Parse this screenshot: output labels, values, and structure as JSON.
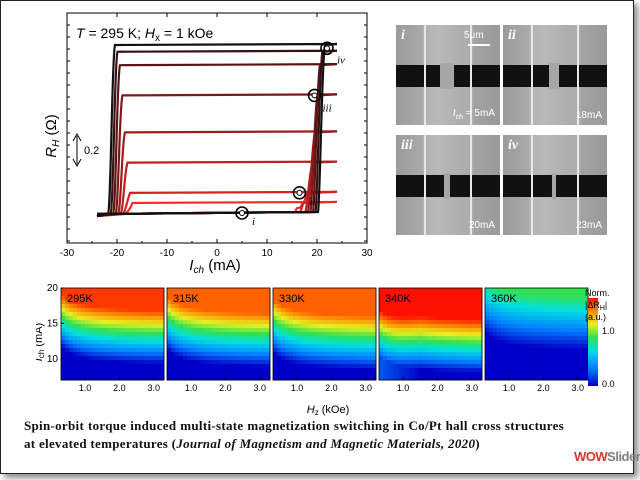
{
  "hysteresis": {
    "title_T": "T",
    "title_rest": " = 295 K; ",
    "title_H": "H",
    "title_sub": "x",
    "title_end": " = 1 kOe",
    "ylabel_main": "R",
    "ylabel_sub": "H",
    "ylabel_unit": " (Ω)",
    "xlabel_main": "I",
    "xlabel_sub": "ch",
    "xlabel_unit": " (mA)",
    "scale_label": "0.2",
    "markers": [
      "i",
      "ii",
      "iii",
      "iv"
    ]
  },
  "chart_data": [
    {
      "type": "line",
      "title": "T = 295 K; Hx = 1 kOe",
      "xlabel": "Ich (mA)",
      "ylabel": "RH (Ω)",
      "xlim": [
        -30,
        30
      ],
      "xticks": [
        -30,
        -20,
        -10,
        0,
        10,
        20,
        30
      ],
      "series_note": "nested minor hysteresis loops, dark (full loop) to light red",
      "loops": [
        {
          "name": "full",
          "upper": 1.0,
          "switch_down": -22,
          "switch_up": 21,
          "color": "#111111"
        },
        {
          "name": "loop2",
          "upper": 0.96,
          "switch_down": -21.5,
          "switch_up": 20.5,
          "color": "#3a0f0f"
        },
        {
          "name": "loop3",
          "upper": 0.88,
          "switch_down": -21,
          "switch_up": 20,
          "color": "#5a1414"
        },
        {
          "name": "loop4",
          "upper": 0.7,
          "switch_down": -20.5,
          "switch_up": 19.5,
          "color": "#7e1818"
        },
        {
          "name": "loop5",
          "upper": 0.48,
          "switch_down": -20,
          "switch_up": 19,
          "color": "#a01c1c"
        },
        {
          "name": "loop6",
          "upper": 0.3,
          "switch_down": -19.5,
          "switch_up": 18.5,
          "color": "#bd2020"
        },
        {
          "name": "loop7",
          "upper": 0.12,
          "switch_down": -19,
          "switch_up": 17.5,
          "color": "#d62222"
        },
        {
          "name": "loop8",
          "upper": 0.06,
          "switch_down": -18.5,
          "switch_up": 16.5,
          "color": "#ee2a2a"
        }
      ],
      "marked_points": [
        {
          "label": "i",
          "x": 5,
          "y": 0.0
        },
        {
          "label": "ii",
          "x": 16.5,
          "y": 0.12
        },
        {
          "label": "iii",
          "x": 19.5,
          "y": 0.7
        },
        {
          "label": "iv",
          "x": 22,
          "y": 0.98
        }
      ]
    },
    {
      "type": "heatmap",
      "xlabel": "Hz (kOe)",
      "ylabel": "Ich (mA)",
      "xticks": [
        1.0,
        2.0,
        3.0
      ],
      "yticks": [
        10,
        15,
        20
      ],
      "ylim": [
        7,
        20
      ],
      "colorbar_label": "Norm. |ΔRH| (a.u.)",
      "colorbar_ticks": [
        0.0,
        1.0
      ],
      "panels": [
        {
          "label": "295K",
          "threshold": 13.0,
          "saturation": 0.95
        },
        {
          "label": "315K",
          "threshold": 12.6,
          "saturation": 0.9
        },
        {
          "label": "330K",
          "threshold": 12.2,
          "saturation": 0.9
        },
        {
          "label": "340K",
          "threshold": 11.8,
          "saturation": 1.0
        },
        {
          "label": "360K",
          "threshold": 15.0,
          "saturation": 0.55
        }
      ]
    }
  ],
  "colormap": {
    "heatmap_label": "Norm.",
    "heatmap_label2": "|ΔR",
    "heatmap_label2_sub": "H",
    "heatmap_label2_end": "|",
    "heatmap_label3": "(a.u.)",
    "hz_main": "H",
    "hz_sub": "z",
    "hz_unit": " (kOe)",
    "ich_main": "I",
    "ich_sub": "ch",
    "ich_unit": " (mA)"
  },
  "sem": {
    "scale_label": "5μm",
    "panels": [
      {
        "tag": "i",
        "current_pre": "I",
        "current_sub": "ch",
        "current_post": " = 5mA"
      },
      {
        "tag": "ii",
        "current_pre": "",
        "current_sub": "",
        "current_post": "18mA"
      },
      {
        "tag": "iii",
        "current_pre": "",
        "current_sub": "",
        "current_post": "20mA"
      },
      {
        "tag": "iv",
        "current_pre": "",
        "current_sub": "",
        "current_post": "23mA"
      }
    ]
  },
  "caption": {
    "main": "Spin-orbit torque induced multi-state magnetization switching in Co/Pt hall cross structures at elevated temperatures (",
    "journal": "Journal of Magnetism and Magnetic Materials, 2020",
    "end": ")"
  },
  "watermark": {
    "part1": "WOW",
    "part2": "Slider",
    "color1": "#d43a2a",
    "color2": "#7f7f7f"
  }
}
